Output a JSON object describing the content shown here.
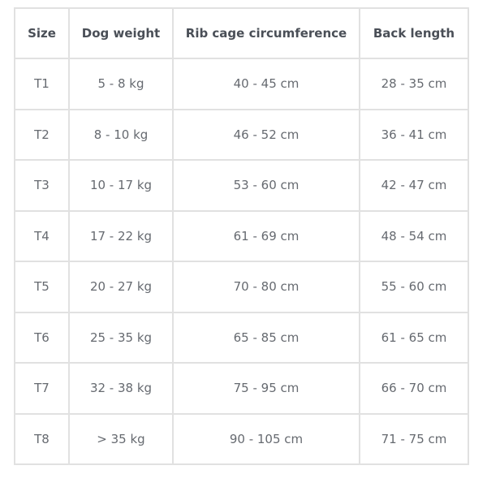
{
  "table": {
    "headers": [
      "Size",
      "Dog weight",
      "Rib cage circumference",
      "Back length"
    ],
    "rows": [
      [
        "T1",
        "5 - 8 kg",
        "40 - 45 cm",
        "28 - 35 cm"
      ],
      [
        "T2",
        "8 - 10 kg",
        "46 - 52 cm",
        "36 - 41 cm"
      ],
      [
        "T3",
        "10 - 17 kg",
        "53 - 60 cm",
        "42 - 47 cm"
      ],
      [
        "T4",
        "17 - 22 kg",
        "61 - 69 cm",
        "48 - 54 cm"
      ],
      [
        "T5",
        "20 - 27 kg",
        "70 - 80 cm",
        "55 - 60 cm"
      ],
      [
        "T6",
        "25 - 35 kg",
        "65 - 85 cm",
        "61 - 65 cm"
      ],
      [
        "T7",
        "32 - 38 kg",
        "75 - 95 cm",
        "66 - 70 cm"
      ],
      [
        "T8",
        "> 35 kg",
        "90 - 105 cm",
        "71 - 75 cm"
      ]
    ]
  }
}
